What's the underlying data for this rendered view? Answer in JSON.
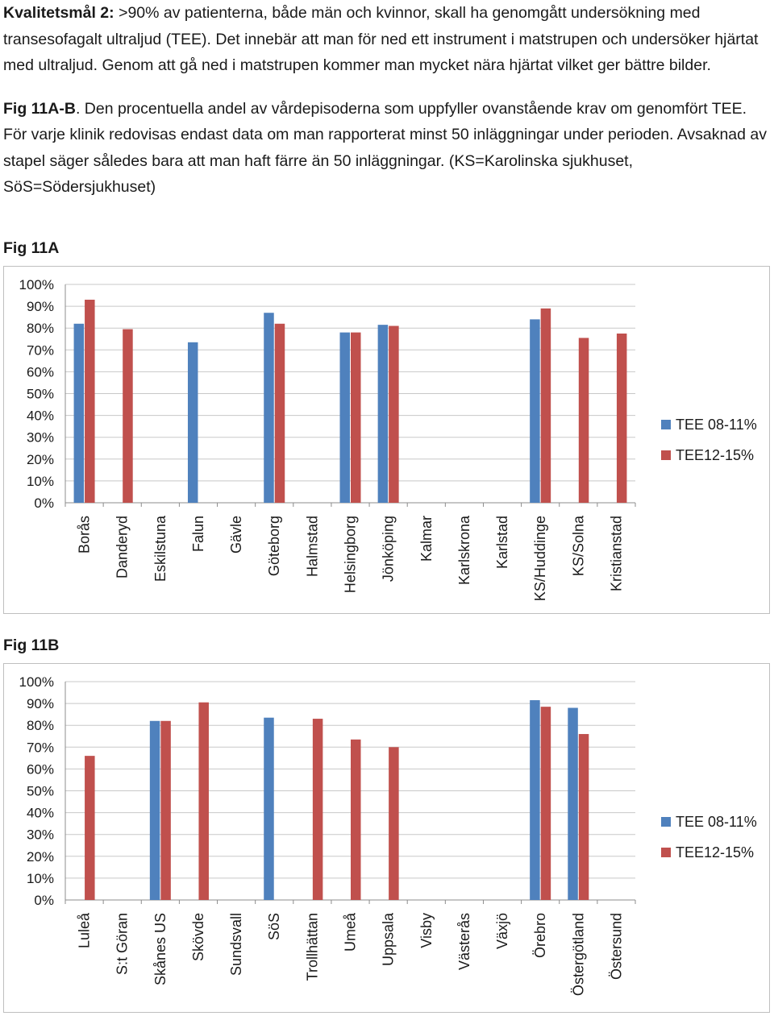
{
  "intro": {
    "goal_label": "Kvalitetsmål 2:",
    "goal_text": " >90% av patienterna, både män och kvinnor, skall ha genomgått undersökning med transesofagalt ultraljud (TEE). Det innebär att man för ned ett instrument i matstrupen och undersöker hjärtat med ultraljud. Genom att gå ned i matstrupen kommer man mycket nära hjärtat vilket ger bättre bilder.",
    "fig_label": "Fig 11A-B",
    "fig_text": ". Den procentuella andel av vårdepisoderna som uppfyller ovanstående krav om genomfört TEE. För varje klinik redovisas endast data om man rapporterat minst 50 inläggningar under perioden. Avsaknad av stapel säger således bara att man haft färre än 50 inläggningar. (KS=Karolinska sjukhuset, SöS=Södersjukhuset)"
  },
  "figA_title": "Fig 11A",
  "figB_title": "Fig 11B",
  "colors": {
    "series1": "#4f81bd",
    "series2": "#c0504d",
    "grid": "#c8c8c8",
    "axis": "#8c8c8c"
  },
  "chart_data": [
    {
      "type": "bar",
      "title": "",
      "categories": [
        "Borås",
        "Danderyd",
        "Eskilstuna",
        "Falun",
        "Gävle",
        "Göteborg",
        "Halmstad",
        "Helsingborg",
        "Jönköping",
        "Kalmar",
        "Karlskrona",
        "Karlstad",
        "KS/Huddinge",
        "KS/Solna",
        "Kristianstad"
      ],
      "series": [
        {
          "name": "TEE 08-11%",
          "values": [
            82,
            null,
            null,
            73.5,
            null,
            87,
            null,
            78,
            81.5,
            null,
            null,
            null,
            84,
            null,
            null
          ]
        },
        {
          "name": "TEE12-15%",
          "values": [
            93,
            79.5,
            null,
            null,
            null,
            82,
            null,
            78,
            81,
            null,
            null,
            null,
            89,
            75.5,
            77.5
          ]
        }
      ],
      "ylim": [
        0,
        100
      ],
      "yticks": [
        "0%",
        "10%",
        "20%",
        "30%",
        "40%",
        "50%",
        "60%",
        "70%",
        "80%",
        "90%",
        "100%"
      ],
      "grid": true,
      "legend": "right"
    },
    {
      "type": "bar",
      "title": "",
      "categories": [
        "Luleå",
        "S:t Göran",
        "Skånes US",
        "Skövde",
        "Sundsvall",
        "SöS",
        "Trollhättan",
        "Umeå",
        "Uppsala",
        "Visby",
        "Västerås",
        "Växjö",
        "Örebro",
        "Östergötland",
        "Östersund"
      ],
      "series": [
        {
          "name": "TEE 08-11%",
          "values": [
            null,
            null,
            82,
            null,
            null,
            83.5,
            null,
            null,
            null,
            null,
            null,
            null,
            91.5,
            88,
            null
          ]
        },
        {
          "name": "TEE12-15%",
          "values": [
            66,
            null,
            82,
            90.5,
            null,
            null,
            83,
            73.5,
            70,
            null,
            null,
            null,
            88.5,
            76,
            null
          ]
        }
      ],
      "ylim": [
        0,
        100
      ],
      "yticks": [
        "0%",
        "10%",
        "20%",
        "30%",
        "40%",
        "50%",
        "60%",
        "70%",
        "80%",
        "90%",
        "100%"
      ],
      "grid": true,
      "legend": "right"
    }
  ]
}
